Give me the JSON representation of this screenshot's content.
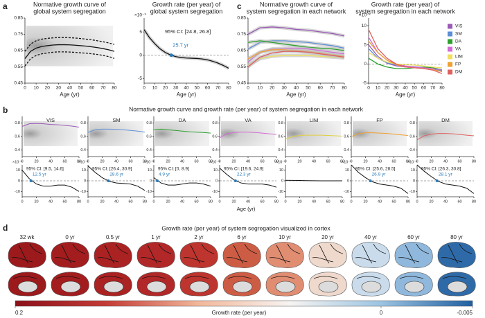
{
  "panel_labels": [
    "a",
    "b",
    "c",
    "d"
  ],
  "panel_b": {
    "title": "Normative growth curve and growth rate (per year) of system segregation in each network",
    "xlabel": "Age (yr)"
  },
  "chart_data": [
    {
      "type": "line",
      "title": [
        "Normative growth curve of",
        "global system segregation"
      ],
      "xlabel": "Age (yr)",
      "x": [
        0,
        5,
        10,
        15,
        20,
        25,
        30,
        35,
        40,
        45,
        50,
        55,
        60,
        65,
        70,
        75,
        80
      ],
      "xlim": [
        0,
        80
      ],
      "xticks": [
        0,
        10,
        20,
        30,
        40,
        50,
        60,
        70,
        80
      ],
      "ylim": [
        0.45,
        0.85
      ],
      "yticks": [
        0.45,
        0.55,
        0.65,
        0.75,
        0.85
      ],
      "series": [
        {
          "color": "#111111",
          "values": [
            0.6,
            0.645,
            0.665,
            0.675,
            0.68,
            0.684,
            0.686,
            0.686,
            0.685,
            0.683,
            0.68,
            0.677,
            0.673,
            0.668,
            0.662,
            0.655,
            0.645
          ]
        },
        {
          "color": "#111111",
          "dashed": true,
          "values": [
            0.645,
            0.69,
            0.71,
            0.72,
            0.725,
            0.728,
            0.73,
            0.73,
            0.729,
            0.727,
            0.724,
            0.72,
            0.716,
            0.71,
            0.704,
            0.697,
            0.688
          ]
        },
        {
          "color": "#111111",
          "dashed": true,
          "values": [
            0.555,
            0.6,
            0.62,
            0.63,
            0.635,
            0.64,
            0.642,
            0.642,
            0.641,
            0.639,
            0.636,
            0.634,
            0.63,
            0.626,
            0.62,
            0.613,
            0.602
          ]
        }
      ]
    },
    {
      "type": "line",
      "title": [
        "Growth rate (per year) of",
        "global system segregation"
      ],
      "xlabel": "Age (yr)",
      "ylabel_unit": "×10⁻³",
      "x": [
        0,
        5,
        10,
        15,
        20,
        25,
        30,
        35,
        40,
        45,
        50,
        55,
        60,
        65,
        70,
        75,
        80
      ],
      "xlim": [
        0,
        80
      ],
      "xticks": [
        0,
        10,
        20,
        30,
        40,
        50,
        60,
        70,
        80
      ],
      "ylim": [
        -6,
        8
      ],
      "yticks": [
        -5,
        0,
        5
      ],
      "zero_line": true,
      "series": [
        {
          "color": "#111111",
          "values": [
            5.5,
            3.8,
            2.5,
            1.4,
            0.6,
            0.05,
            -0.3,
            -0.5,
            -0.6,
            -0.65,
            -0.7,
            -0.8,
            -1.0,
            -1.3,
            -1.7,
            -2.2,
            -2.8
          ]
        }
      ],
      "ci_label": "95% CI: [24.8, 26.8]",
      "peak": {
        "value": 25.7,
        "label": "25.7 yr"
      }
    },
    {
      "type": "line",
      "title": [
        "Normative growth curve of",
        "system segregation in each network"
      ],
      "xlabel": "Age (yr)",
      "x": [
        0,
        10,
        20,
        30,
        40,
        50,
        60,
        70,
        80
      ],
      "xlim": [
        0,
        80
      ],
      "xticks": [
        0,
        10,
        20,
        30,
        40,
        50,
        60,
        70,
        80
      ],
      "ylim": [
        0.45,
        0.85
      ],
      "yticks": [
        0.45,
        0.55,
        0.65,
        0.75,
        0.85
      ],
      "series": [
        {
          "name": "VIS",
          "color": "#9b59b6",
          "values": [
            0.75,
            0.79,
            0.795,
            0.79,
            0.78,
            0.775,
            0.765,
            0.755,
            0.74
          ]
        },
        {
          "name": "SM",
          "color": "#5b8fd6",
          "values": [
            0.66,
            0.7,
            0.71,
            0.71,
            0.705,
            0.7,
            0.69,
            0.68,
            0.665
          ]
        },
        {
          "name": "DA",
          "color": "#2ca02c",
          "values": [
            0.7,
            0.71,
            0.7,
            0.69,
            0.68,
            0.67,
            0.665,
            0.66,
            0.65
          ]
        },
        {
          "name": "VA",
          "color": "#d36ad6",
          "values": [
            0.58,
            0.64,
            0.66,
            0.665,
            0.665,
            0.66,
            0.65,
            0.64,
            0.63
          ]
        },
        {
          "name": "LIM",
          "color": "#f0df5e",
          "values": [
            0.56,
            0.6,
            0.615,
            0.62,
            0.62,
            0.62,
            0.615,
            0.61,
            0.605
          ]
        },
        {
          "name": "FP",
          "color": "#f0a030",
          "values": [
            0.6,
            0.64,
            0.655,
            0.655,
            0.65,
            0.645,
            0.635,
            0.625,
            0.615
          ]
        },
        {
          "name": "DM",
          "color": "#e06060",
          "values": [
            0.55,
            0.61,
            0.635,
            0.645,
            0.645,
            0.64,
            0.63,
            0.62,
            0.61
          ]
        }
      ]
    },
    {
      "type": "line",
      "title": [
        "Growth rate (per year) of",
        "system segregation in each network"
      ],
      "xlabel": "Age (yr)",
      "ylabel_unit": "×10⁻²",
      "x": [
        0,
        10,
        20,
        30,
        40,
        50,
        60,
        70,
        80
      ],
      "xlim": [
        0,
        80
      ],
      "xticks": [
        0,
        10,
        20,
        30,
        40,
        50,
        60,
        70,
        80
      ],
      "ylim": [
        -5,
        12
      ],
      "yticks": [
        -5,
        0,
        5,
        10
      ],
      "zero_line": true,
      "legend": "right",
      "series": [
        {
          "name": "VIS",
          "color": "#9b59b6",
          "values": [
            5,
            2,
            0.2,
            -0.5,
            -0.8,
            -0.8,
            -0.9,
            -1.2,
            -2
          ]
        },
        {
          "name": "SM",
          "color": "#5b8fd6",
          "values": [
            4,
            1.5,
            0.3,
            -0.3,
            -0.6,
            -0.7,
            -0.9,
            -1.2,
            -1.8
          ]
        },
        {
          "name": "DA",
          "color": "#2ca02c",
          "values": [
            1.5,
            0,
            -0.8,
            -1.2,
            -1.2,
            -1,
            -0.8,
            -1,
            -1.5
          ]
        },
        {
          "name": "VA",
          "color": "#d36ad6",
          "values": [
            7,
            3,
            1,
            0,
            -0.5,
            -0.8,
            -1,
            -1.2,
            -1.6
          ]
        },
        {
          "name": "LIM",
          "color": "#f0df5e",
          "values": [
            3,
            1.5,
            0.5,
            0,
            -0.2,
            -0.3,
            -0.5,
            -0.8,
            -1
          ]
        },
        {
          "name": "FP",
          "color": "#f0a030",
          "values": [
            6,
            3,
            1,
            -0.2,
            -0.8,
            -1,
            -1.2,
            -1.5,
            -2
          ]
        },
        {
          "name": "DM",
          "color": "#e06060",
          "values": [
            9,
            4,
            1.5,
            0,
            -0.8,
            -1,
            -1.2,
            -1.6,
            -2.5
          ]
        }
      ]
    },
    {
      "type": "line",
      "title": "VIS",
      "x": [
        0,
        10,
        20,
        30,
        40,
        50,
        60,
        70,
        80
      ],
      "xlim": [
        0,
        80
      ],
      "xticks": [
        0,
        20,
        40,
        60,
        80
      ],
      "ylim": [
        0.3,
        0.9
      ],
      "yticks": [
        0.4,
        0.6,
        0.8
      ],
      "series": [
        {
          "color": "#9b59b6",
          "values": [
            0.75,
            0.79,
            0.795,
            0.79,
            0.78,
            0.775,
            0.765,
            0.755,
            0.74
          ]
        }
      ]
    },
    {
      "type": "line",
      "title": "SM",
      "x": [
        0,
        10,
        20,
        30,
        40,
        50,
        60,
        70,
        80
      ],
      "xlim": [
        0,
        80
      ],
      "xticks": [
        0,
        20,
        40,
        60,
        80
      ],
      "ylim": [
        0.3,
        0.9
      ],
      "yticks": [
        0.4,
        0.6,
        0.8
      ],
      "series": [
        {
          "color": "#5b8fd6",
          "values": [
            0.66,
            0.7,
            0.71,
            0.71,
            0.705,
            0.7,
            0.69,
            0.68,
            0.665
          ]
        }
      ]
    },
    {
      "type": "line",
      "title": "DA",
      "x": [
        0,
        10,
        20,
        30,
        40,
        50,
        60,
        70,
        80
      ],
      "xlim": [
        0,
        80
      ],
      "xticks": [
        0,
        20,
        40,
        60,
        80
      ],
      "ylim": [
        0.3,
        0.9
      ],
      "yticks": [
        0.4,
        0.6,
        0.8
      ],
      "series": [
        {
          "color": "#2ca02c",
          "values": [
            0.7,
            0.71,
            0.7,
            0.69,
            0.68,
            0.67,
            0.665,
            0.66,
            0.65
          ]
        }
      ]
    },
    {
      "type": "line",
      "title": "VA",
      "x": [
        0,
        10,
        20,
        30,
        40,
        50,
        60,
        70,
        80
      ],
      "xlim": [
        0,
        80
      ],
      "xticks": [
        0,
        20,
        40,
        60,
        80
      ],
      "ylim": [
        0.3,
        0.9
      ],
      "yticks": [
        0.4,
        0.6,
        0.8
      ],
      "series": [
        {
          "color": "#d36ad6",
          "values": [
            0.58,
            0.64,
            0.66,
            0.665,
            0.665,
            0.66,
            0.65,
            0.64,
            0.63
          ]
        }
      ]
    },
    {
      "type": "line",
      "title": "LIM",
      "x": [
        0,
        10,
        20,
        30,
        40,
        50,
        60,
        70,
        80
      ],
      "xlim": [
        0,
        80
      ],
      "xticks": [
        0,
        20,
        40,
        60,
        80
      ],
      "ylim": [
        0.3,
        0.9
      ],
      "yticks": [
        0.4,
        0.6,
        0.8
      ],
      "series": [
        {
          "color": "#e0cf40",
          "values": [
            0.56,
            0.6,
            0.615,
            0.62,
            0.62,
            0.62,
            0.615,
            0.61,
            0.605
          ]
        }
      ]
    },
    {
      "type": "line",
      "title": "FP",
      "x": [
        0,
        10,
        20,
        30,
        40,
        50,
        60,
        70,
        80
      ],
      "xlim": [
        0,
        80
      ],
      "xticks": [
        0,
        20,
        40,
        60,
        80
      ],
      "ylim": [
        0.3,
        0.9
      ],
      "yticks": [
        0.4,
        0.6,
        0.8
      ],
      "series": [
        {
          "color": "#f0a030",
          "values": [
            0.6,
            0.64,
            0.655,
            0.655,
            0.65,
            0.645,
            0.635,
            0.625,
            0.615
          ]
        }
      ]
    },
    {
      "type": "line",
      "title": "DM",
      "x": [
        0,
        10,
        20,
        30,
        40,
        50,
        60,
        70,
        80
      ],
      "xlim": [
        0,
        80
      ],
      "xticks": [
        0,
        20,
        40,
        60,
        80
      ],
      "ylim": [
        0.3,
        0.9
      ],
      "yticks": [
        0.4,
        0.6,
        0.8
      ],
      "series": [
        {
          "color": "#e06060",
          "values": [
            0.55,
            0.61,
            0.635,
            0.645,
            0.645,
            0.64,
            0.63,
            0.62,
            0.61
          ]
        }
      ]
    },
    {
      "type": "line",
      "ylabel_unit": "×10⁻³",
      "x": [
        0,
        10,
        20,
        30,
        40,
        50,
        60,
        70,
        80
      ],
      "xlim": [
        0,
        80
      ],
      "xticks": [
        0,
        20,
        40,
        60,
        80
      ],
      "ylim": [
        -15,
        15
      ],
      "yticks": [
        -10,
        0,
        10
      ],
      "zero_line": true,
      "series": [
        {
          "color": "#111111",
          "values": [
            10,
            2,
            -3,
            -5,
            -5,
            -4,
            -4,
            -6,
            -10
          ]
        }
      ],
      "ci_label": "95% CI: [9.5, 14.6]",
      "peak": {
        "value": 12.5,
        "label": "12.5 yr"
      }
    },
    {
      "type": "line",
      "ylabel_unit": "×10⁻³",
      "x": [
        0,
        10,
        20,
        30,
        40,
        50,
        60,
        70,
        80
      ],
      "xlim": [
        0,
        80
      ],
      "xticks": [
        0,
        20,
        40,
        60,
        80
      ],
      "ylim": [
        -15,
        15
      ],
      "yticks": [
        -10,
        0,
        10
      ],
      "zero_line": true,
      "series": [
        {
          "color": "#111111",
          "values": [
            14,
            8,
            3,
            -0.5,
            -2,
            -2.5,
            -3,
            -5,
            -9
          ]
        }
      ],
      "ci_label": "95% CI: [26.4, 30.9]",
      "peak": {
        "value": 28.6,
        "label": "28.6 yr"
      }
    },
    {
      "type": "line",
      "ylabel_unit": "×10⁻³",
      "x": [
        0,
        10,
        20,
        30,
        40,
        50,
        60,
        70,
        80
      ],
      "xlim": [
        0,
        80
      ],
      "xticks": [
        0,
        20,
        40,
        60,
        80
      ],
      "ylim": [
        -15,
        15
      ],
      "yticks": [
        -10,
        0,
        10
      ],
      "zero_line": true,
      "series": [
        {
          "color": "#111111",
          "values": [
            3,
            -2,
            -4,
            -4,
            -3,
            -2,
            -2,
            -3,
            -5
          ]
        }
      ],
      "ci_label": "95% CI: [0, 8.9]",
      "peak": {
        "value": 4.9,
        "label": "4.9 yr"
      }
    },
    {
      "type": "line",
      "ylabel_unit": "×10⁻³",
      "x": [
        0,
        10,
        20,
        30,
        40,
        50,
        60,
        70,
        80
      ],
      "xlim": [
        0,
        80
      ],
      "xticks": [
        0,
        20,
        40,
        60,
        80
      ],
      "ylim": [
        -15,
        15
      ],
      "yticks": [
        -10,
        0,
        10
      ],
      "zero_line": true,
      "series": [
        {
          "color": "#111111",
          "values": [
            12,
            6,
            1,
            -2,
            -3,
            -3,
            -3,
            -4,
            -6
          ]
        }
      ],
      "ci_label": "95% CI: [19.6, 24.9]",
      "peak": {
        "value": 22.3,
        "label": "22.3 yr"
      }
    },
    {
      "type": "line",
      "ylabel_unit": "×10⁻³",
      "x": [
        0,
        10,
        20,
        30,
        40,
        50,
        60,
        70,
        80
      ],
      "xlim": [
        0,
        80
      ],
      "xticks": [
        0,
        20,
        40,
        60,
        80
      ],
      "ylim": [
        -15,
        15
      ],
      "yticks": [
        -10,
        0,
        10
      ],
      "zero_line": true,
      "series": [
        {
          "color": "#111111",
          "values": [
            0.5,
            0.4,
            0.3,
            0.2,
            0.1,
            0,
            0,
            0,
            0
          ]
        }
      ]
    },
    {
      "type": "line",
      "ylabel_unit": "×10⁻³",
      "x": [
        0,
        10,
        20,
        30,
        40,
        50,
        60,
        70,
        80
      ],
      "xlim": [
        0,
        80
      ],
      "xticks": [
        0,
        20,
        40,
        60,
        80
      ],
      "ylim": [
        -15,
        15
      ],
      "yticks": [
        -10,
        0,
        10
      ],
      "zero_line": true,
      "series": [
        {
          "color": "#111111",
          "values": [
            15,
            8,
            3,
            -1,
            -3,
            -4,
            -5,
            -7,
            -12
          ]
        }
      ],
      "ci_label": "95% CI: [25.6, 28.5]",
      "peak": {
        "value": 26.9,
        "label": "26.9 yr"
      }
    },
    {
      "type": "line",
      "ylabel_unit": "×10⁻³",
      "x": [
        0,
        10,
        20,
        30,
        40,
        50,
        60,
        70,
        80
      ],
      "xlim": [
        0,
        80
      ],
      "xticks": [
        0,
        20,
        40,
        60,
        80
      ],
      "ylim": [
        -15,
        15
      ],
      "yticks": [
        -10,
        0,
        10
      ],
      "zero_line": true,
      "series": [
        {
          "color": "#111111",
          "values": [
            15,
            9,
            4,
            -0.5,
            -3,
            -4,
            -5,
            -7,
            -12
          ]
        }
      ],
      "ci_label": "95% CI: [26.3, 30.8]",
      "peak": {
        "value": 28.1,
        "label": "28.1 yr"
      }
    }
  ],
  "cortex": {
    "title": "Growth rate (per year) of system segregation visualized in cortex",
    "ages": [
      "32 wk",
      "0 yr",
      "0.5 yr",
      "1 yr",
      "2 yr",
      "6 yr",
      "10 yr",
      "20 yr",
      "40 yr",
      "60 yr",
      "80 yr"
    ],
    "colors": [
      "#9c1a1c",
      "#a31d1e",
      "#ab2222",
      "#b22828",
      "#bd352e",
      "#cd5c45",
      "#e08d72",
      "#efd9cc",
      "#cadcec",
      "#8fb8dc",
      "#2f6aa8"
    ],
    "colorbar": {
      "label": "Growth rate (per year)",
      "ticks": [
        0.2,
        0,
        -0.005
      ],
      "colors": [
        "#8b0f1a",
        "#c43c36",
        "#f2b79a",
        "#f7f4f2",
        "#9cc4e2",
        "#1f5fa0"
      ]
    }
  }
}
